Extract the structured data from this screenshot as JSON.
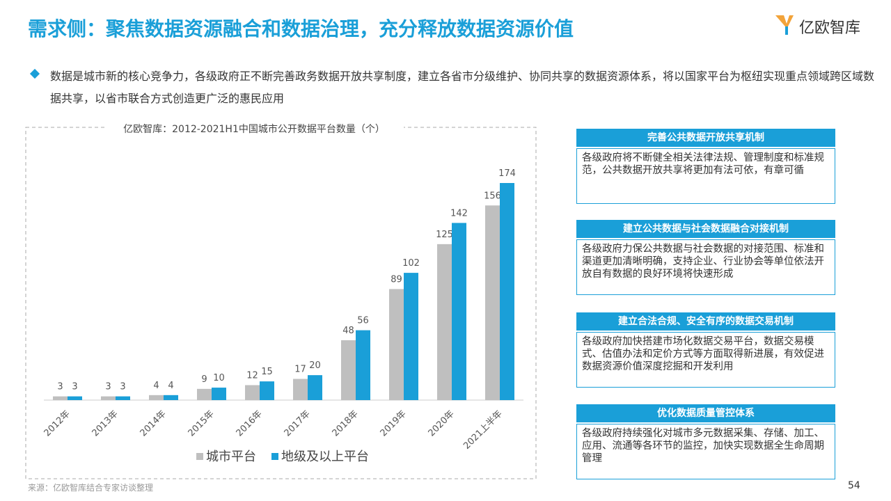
{
  "header": {
    "title": "需求侧：聚焦数据资源融合和数据治理，充分释放数据资源价值",
    "logo": "亿欧智库"
  },
  "bullet": "数据是城市新的核心竞争力，各级政府正不断完善政务数据开放共享制度，建立各省市分级维护、协同共享的数据资源体系，将以国家平台为枢纽实现重点领域跨区域数据共享，以省市联合方式创造更广泛的惠民应用",
  "chart_data": {
    "type": "bar",
    "title": "亿欧智库：2012-2021H1中国城市公开数据平台数量（个）",
    "categories": [
      "2012年",
      "2013年",
      "2014年",
      "2015年",
      "2016年",
      "2017年",
      "2018年",
      "2019年",
      "2020年",
      "2021上半年"
    ],
    "series": [
      {
        "name": "城市平台",
        "color": "#bfbfbf",
        "values": [
          3,
          3,
          4,
          9,
          12,
          17,
          48,
          89,
          125,
          156
        ]
      },
      {
        "name": "地级及以上平台",
        "color": "#1a9fd8",
        "values": [
          3,
          3,
          4,
          10,
          15,
          20,
          56,
          102,
          142,
          174
        ]
      }
    ]
  },
  "cards": [
    {
      "title": "完善公共数据开放共享机制",
      "text": "各级政府将不断健全相关法律法规、管理制度和标准规范，公共数据开放共享将更加有法可依，有章可循"
    },
    {
      "title": "建立公共数据与社会数据融合对接机制",
      "text": "各级政府力保公共数据与社会数据的对接范围、标准和渠道更加清晰明确，支持企业、行业协会等单位依法开放自有数据的良好环境将快速形成"
    },
    {
      "title": "建立合法合规、安全有序的数据交易机制",
      "text": "各级政府加快搭建市场化数据交易平台，数据交易模式、估值办法和定价方式等方面取得新进展，有效促进数据资源价值深度挖掘和开发利用"
    },
    {
      "title": "优化数据质量管控体系",
      "text": "各级政府持续强化对城市多元数据采集、存储、加工、应用、流通等各环节的监控，加快实现数据全生命周期管理"
    }
  ],
  "source": "来源：亿欧智库结合专家访谈整理",
  "page_number": "54"
}
